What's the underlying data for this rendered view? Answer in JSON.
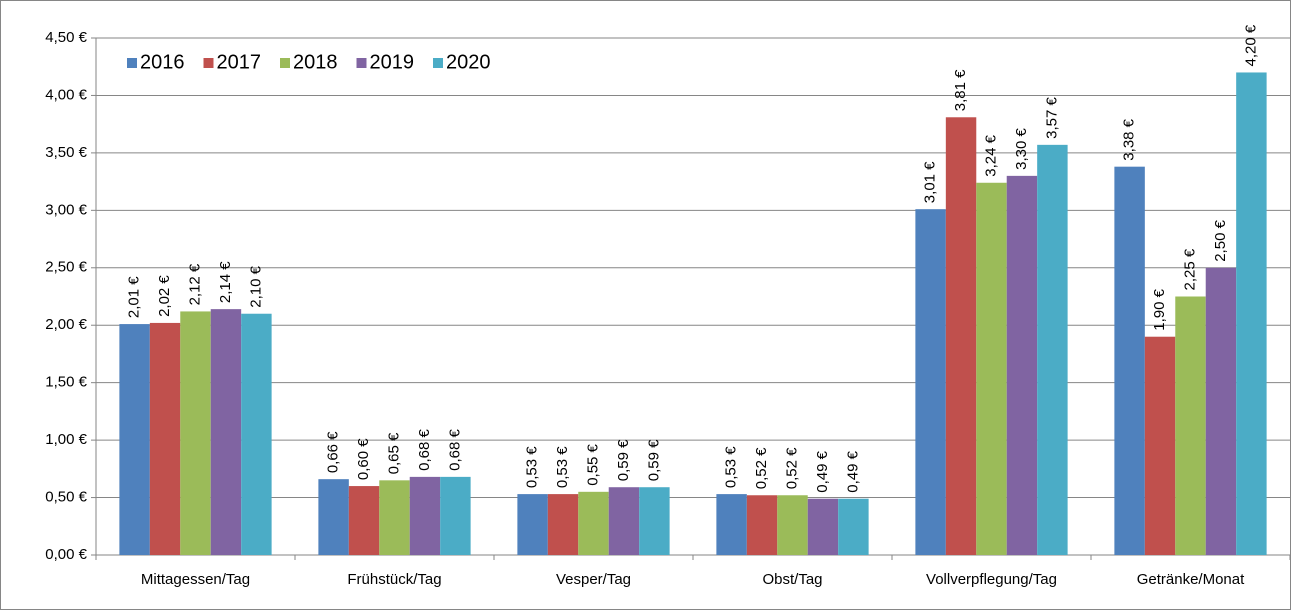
{
  "chart_data": {
    "type": "bar",
    "categories": [
      "Mittagessen/Tag",
      "Frühstück/Tag",
      "Vesper/Tag",
      "Obst/Tag",
      "Vollverpflegung/Tag",
      "Getränke/Monat"
    ],
    "series": [
      {
        "name": "2016",
        "color": "#4f81bd",
        "values": [
          2.01,
          0.66,
          0.53,
          0.53,
          3.01,
          3.38
        ],
        "value_labels": [
          "2,01 €",
          "0,66 €",
          "0,53 €",
          "0,53 €",
          "3,01 €",
          "3,38 €"
        ]
      },
      {
        "name": "2017",
        "color": "#c0504d",
        "values": [
          2.02,
          0.6,
          0.53,
          0.52,
          3.81,
          1.9
        ],
        "value_labels": [
          "2,02 €",
          "0,60 €",
          "0,53 €",
          "0,52 €",
          "3,81 €",
          "1,90 €"
        ]
      },
      {
        "name": "2018",
        "color": "#9bbb59",
        "values": [
          2.12,
          0.65,
          0.55,
          0.52,
          3.24,
          2.25
        ],
        "value_labels": [
          "2,12 €",
          "0,65 €",
          "0,55 €",
          "0,52 €",
          "3,24 €",
          "2,25 €"
        ]
      },
      {
        "name": "2019",
        "color": "#8064a2",
        "values": [
          2.14,
          0.68,
          0.59,
          0.49,
          3.3,
          2.5
        ],
        "value_labels": [
          "2,14 €",
          "0,68 €",
          "0,59 €",
          "0,49 €",
          "3,30 €",
          "2,50 €"
        ]
      },
      {
        "name": "2020",
        "color": "#4bacc6",
        "values": [
          2.1,
          0.68,
          0.59,
          0.49,
          3.57,
          4.2
        ],
        "value_labels": [
          "2,10 €",
          "0,68 €",
          "0,59 €",
          "0,49 €",
          "3,57 €",
          "4,20 €"
        ]
      }
    ],
    "ylim": [
      0,
      4.5
    ],
    "yticks": [
      {
        "value": 0,
        "label": "0,00 €"
      },
      {
        "value": 0.5,
        "label": "0,50 €"
      },
      {
        "value": 1,
        "label": "1,00 €"
      },
      {
        "value": 1.5,
        "label": "1,50 €"
      },
      {
        "value": 2,
        "label": "2,00 €"
      },
      {
        "value": 2.5,
        "label": "2,50 €"
      },
      {
        "value": 3,
        "label": "3,00 €"
      },
      {
        "value": 3.5,
        "label": "3,50 €"
      },
      {
        "value": 4,
        "label": "4,00 €"
      },
      {
        "value": 4.5,
        "label": "4,50 €"
      }
    ],
    "grid": true,
    "legend": "top-left"
  }
}
